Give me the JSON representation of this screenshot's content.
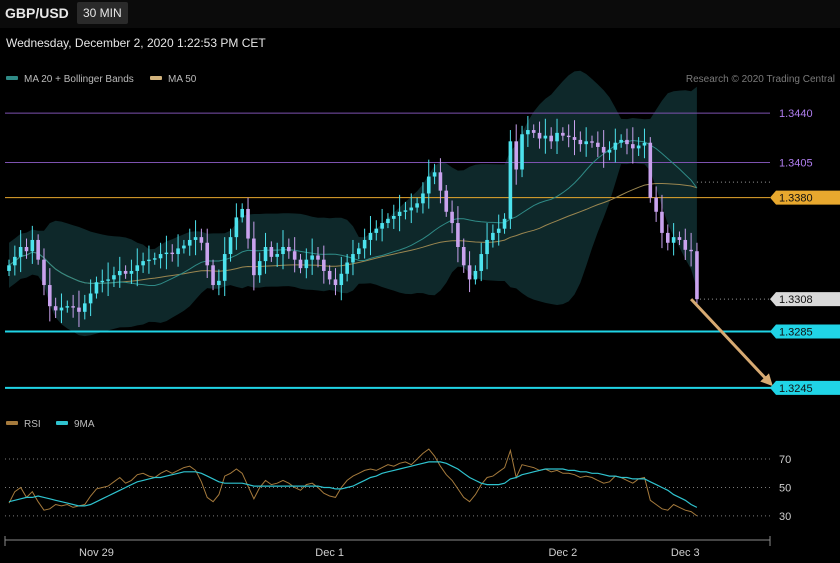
{
  "header": {
    "symbol": "GBP/USD",
    "timeframe": "30 MIN",
    "datetime": "Wednesday, December 2, 2020 1:22:53 PM CET"
  },
  "legend": {
    "ma20_label": "MA 20 + Bollinger Bands",
    "ma50_label": "MA 50",
    "copyright": "Research © 2020 Trading Central",
    "rsi_label": "RSI",
    "ma9_label": "9MA"
  },
  "colors": {
    "background": "#000000",
    "candle_up": "#4de3ee",
    "candle_down": "#c9a2ee",
    "bollinger_fill": "#0f2a2c",
    "ma20": "#2f8a86",
    "ma50": "#9a8650",
    "resistance": "#7d52b0",
    "pivot": "#e8a82e",
    "support": "#20d4e6",
    "current_price": "#d9d9d9",
    "forecast_arrow": "#d7aa72",
    "rsi": "#a57a3c",
    "rsi_ma": "#2fc3cf"
  },
  "chart_data": {
    "type": "candlestick",
    "instrument": "GBP/USD",
    "interval": "30 MIN",
    "price_axis": {
      "ylim": [
        1.3235,
        1.3455
      ]
    },
    "x_tick_labels": [
      {
        "label": "Nov 29",
        "bar": 15
      },
      {
        "label": "Dec 1",
        "bar": 55
      },
      {
        "label": "Dec 2",
        "bar": 95
      },
      {
        "label": "Dec 3",
        "bar": 116
      }
    ],
    "levels": [
      {
        "price": 1.344,
        "label": "1.3440",
        "kind": "resistance"
      },
      {
        "price": 1.3405,
        "label": "1.3405",
        "kind": "resistance"
      },
      {
        "price": 1.338,
        "label": "1.3380",
        "kind": "pivot"
      },
      {
        "price": 1.3308,
        "label": "1.3308",
        "kind": "current_price"
      },
      {
        "price": 1.3285,
        "label": "1.3285",
        "kind": "support"
      },
      {
        "price": 1.3245,
        "label": "1.3245",
        "kind": "support"
      }
    ],
    "forecast_arrow": {
      "from_bar": 117,
      "from_price": 1.3308,
      "to_bar": 131,
      "to_price": 1.3245
    },
    "close": [
      1.3332,
      1.3338,
      1.3345,
      1.3342,
      1.335,
      1.3336,
      1.3318,
      1.3303,
      1.33,
      1.3302,
      1.3303,
      1.3302,
      1.3299,
      1.3305,
      1.3312,
      1.332,
      1.3321,
      1.3322,
      1.3325,
      1.3328,
      1.3326,
      1.3328,
      1.3332,
      1.3335,
      1.3336,
      1.3337,
      1.334,
      1.3341,
      1.334,
      1.3344,
      1.3346,
      1.335,
      1.3352,
      1.3348,
      1.3332,
      1.3318,
      1.3321,
      1.334,
      1.3352,
      1.3366,
      1.3372,
      1.3351,
      1.3325,
      1.3335,
      1.3345,
      1.3338,
      1.334,
      1.3345,
      1.3342,
      1.3336,
      1.333,
      1.3336,
      1.3339,
      1.3336,
      1.3328,
      1.3322,
      1.3318,
      1.3326,
      1.3334,
      1.334,
      1.3344,
      1.335,
      1.3355,
      1.3358,
      1.3362,
      1.3365,
      1.3367,
      1.337,
      1.3371,
      1.3373,
      1.3376,
      1.3383,
      1.3395,
      1.3398,
      1.3385,
      1.337,
      1.3362,
      1.3345,
      1.3332,
      1.3322,
      1.3328,
      1.334,
      1.335,
      1.3355,
      1.3358,
      1.3365,
      1.342,
      1.34,
      1.3425,
      1.3428,
      1.3426,
      1.3422,
      1.3424,
      1.342,
      1.3426,
      1.3424,
      1.3423,
      1.3421,
      1.3418,
      1.342,
      1.3419,
      1.3416,
      1.3412,
      1.3414,
      1.3419,
      1.3421,
      1.3418,
      1.3415,
      1.3417,
      1.3419,
      1.338,
      1.337,
      1.3355,
      1.3348,
      1.3352,
      1.335,
      1.3343,
      1.3342,
      1.3308
    ],
    "rsi_axis": {
      "ylim": [
        25,
        82
      ],
      "ticks": [
        70,
        50,
        30
      ],
      "dotted_levels": [
        70,
        50,
        30
      ]
    },
    "rsi": [
      39,
      47,
      50,
      43,
      47,
      40,
      34,
      35,
      38,
      37,
      38,
      36,
      37,
      38,
      44,
      49,
      50,
      51,
      54,
      57,
      53,
      55,
      59,
      60,
      58,
      57,
      60,
      62,
      60,
      62,
      64,
      65,
      62,
      54,
      43,
      40,
      45,
      58,
      60,
      63,
      60,
      51,
      42,
      50,
      55,
      52,
      53,
      55,
      53,
      50,
      48,
      52,
      53,
      50,
      46,
      44,
      43,
      50,
      55,
      58,
      60,
      62,
      63,
      62,
      64,
      66,
      65,
      67,
      68,
      66,
      70,
      74,
      77,
      72,
      65,
      59,
      55,
      49,
      43,
      40,
      45,
      52,
      57,
      58,
      61,
      64,
      76,
      57,
      66,
      65,
      64,
      62,
      63,
      61,
      62,
      60,
      60,
      59,
      57,
      58,
      57,
      55,
      53,
      54,
      58,
      57,
      55,
      53,
      56,
      57,
      41,
      38,
      35,
      34,
      38,
      36,
      34,
      33,
      30
    ],
    "rsi_ma9": [
      40,
      41,
      42,
      43,
      43,
      44,
      43,
      42,
      41,
      40,
      39,
      38,
      37,
      37,
      38,
      40,
      42,
      44,
      46,
      48,
      50,
      52,
      54,
      55,
      56,
      57,
      57,
      58,
      59,
      60,
      61,
      61,
      61,
      60,
      58,
      56,
      54,
      53,
      53,
      53,
      53,
      52,
      51,
      51,
      51,
      51,
      51,
      51,
      51,
      51,
      51,
      51,
      51,
      51,
      50,
      50,
      49,
      49,
      50,
      51,
      53,
      55,
      57,
      58,
      60,
      61,
      62,
      63,
      64,
      65,
      66,
      67,
      68,
      68,
      68,
      67,
      65,
      63,
      60,
      57,
      55,
      53,
      52,
      52,
      52,
      53,
      56,
      57,
      59,
      60,
      61,
      62,
      63,
      63,
      63,
      63,
      62,
      62,
      61,
      61,
      60,
      60,
      59,
      58,
      58,
      57,
      57,
      56,
      56,
      56,
      54,
      52,
      50,
      48,
      45,
      43,
      41,
      38,
      36
    ]
  }
}
